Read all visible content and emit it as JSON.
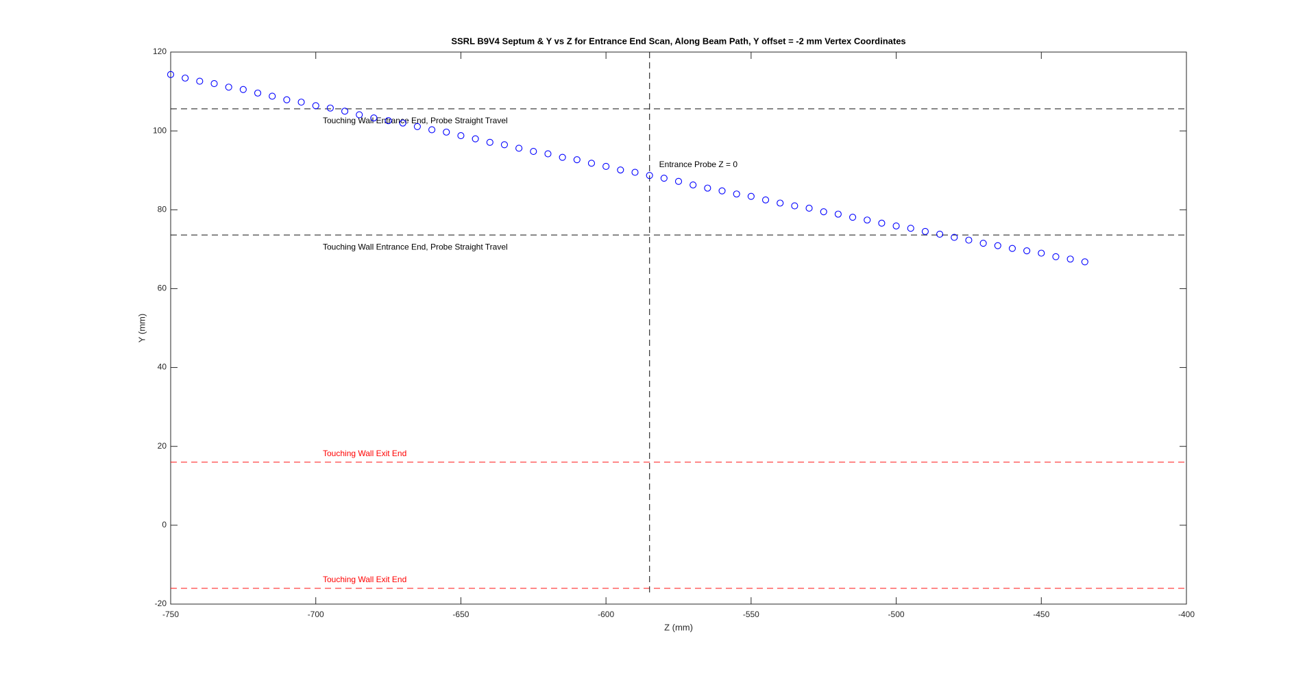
{
  "chart_data": {
    "type": "scatter",
    "title": "SSRL B9V4 Septum & Y vs Z for Entrance End Scan, Along Beam Path, Y offset = -2 mm Vertex Coordinates",
    "x_label": "Z (mm)",
    "y_label": "Y (mm)",
    "xlim": [
      -750,
      -400
    ],
    "ylim": [
      -20,
      120
    ],
    "xticks": [
      -750,
      -700,
      -650,
      -600,
      -550,
      -500,
      -450,
      -400
    ],
    "yticks": [
      -20,
      0,
      20,
      40,
      60,
      80,
      100,
      120
    ],
    "series": [
      {
        "color": "#0000ff",
        "x": [
          -750,
          -745,
          -740,
          -735,
          -730,
          -725,
          -720,
          -715,
          -710,
          -705,
          -700,
          -695,
          -690,
          -685,
          -680,
          -675,
          -670,
          -665,
          -660,
          -655,
          -650,
          -645,
          -640,
          -635,
          -630,
          -625,
          -620,
          -615,
          -610,
          -605,
          -600,
          -595,
          -590,
          -585,
          -580,
          -575,
          -570,
          -565,
          -560,
          -555,
          -550,
          -545,
          -540,
          -535,
          -530,
          -525,
          -520,
          -515,
          -510,
          -505,
          -500,
          -495,
          -490,
          -485,
          -480,
          -475,
          -470,
          -465,
          -460,
          -455,
          -450,
          -445,
          -440,
          -435
        ],
        "values": [
          114.3,
          113.4,
          112.6,
          112.0,
          111.1,
          110.5,
          109.6,
          108.8,
          107.9,
          107.3,
          106.4,
          105.8,
          105.0,
          104.1,
          103.3,
          102.6,
          102.0,
          101.1,
          100.3,
          99.7,
          98.8,
          98.0,
          97.1,
          96.5,
          95.6,
          94.8,
          94.2,
          93.3,
          92.7,
          91.8,
          91.0,
          90.1,
          89.5,
          88.7,
          88.0,
          87.2,
          86.3,
          85.5,
          84.8,
          84.0,
          83.4,
          82.5,
          81.7,
          81.0,
          80.4,
          79.5,
          78.9,
          78.1,
          77.4,
          76.6,
          75.9,
          75.3,
          74.5,
          73.8,
          73.0,
          72.3,
          71.5,
          70.9,
          70.2,
          69.6,
          69.0,
          68.1,
          67.5,
          66.8
        ]
      }
    ],
    "hlines": [
      {
        "value": 105.6,
        "label": "Touching Wall Entrance End, Probe Straight Travel",
        "color": "#000000"
      },
      {
        "value": 73.6,
        "label": "Touching Wall Entrance End, Probe Straight Travel",
        "color": "#000000"
      },
      {
        "value": 16.0,
        "label": "Touching Wall Exit End",
        "color": "#ff0000"
      },
      {
        "value": -16.0,
        "label": "Touching Wall Exit End",
        "color": "#ff0000"
      }
    ],
    "vlines": [
      {
        "value": -585,
        "label": "Entrance Probe Z = 0",
        "color": "#000000"
      }
    ]
  }
}
